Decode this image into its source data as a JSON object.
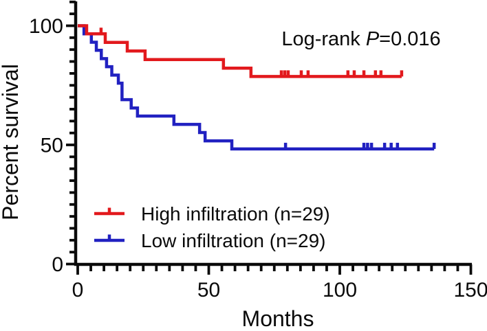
{
  "figure": {
    "background": "#ffffff",
    "axis_color": "#0a0a0a",
    "annotation_parts": {
      "prefix": "Log-rank ",
      "stat": "P",
      "value": "=0.016"
    }
  },
  "chart_data": {
    "type": "line",
    "subtype": "kaplan-meier-step",
    "title": "",
    "xlabel": "Months",
    "ylabel": "Percent survival",
    "xlim": [
      0,
      150
    ],
    "ylim": [
      0,
      110
    ],
    "x_major_ticks": [
      0,
      50,
      100,
      150
    ],
    "x_minor_tick_step": 5,
    "y_major_ticks": [
      0,
      50,
      100
    ],
    "y_minor_tick_step": 5,
    "grid": false,
    "annotation": "Log-rank P=0.016",
    "legend_position": "inside-bottom-left",
    "series": [
      {
        "name": "High infiltration (n=29)",
        "color": "#e2191d",
        "n": 29,
        "steps": [
          [
            0,
            100
          ],
          [
            3.4,
            96.6
          ],
          [
            10.5,
            93.0
          ],
          [
            18.9,
            89.4
          ],
          [
            25.7,
            85.8
          ],
          [
            55.6,
            82.2
          ],
          [
            66.1,
            78.7
          ]
        ],
        "curve_end": 123.6,
        "censor_marks": [
          [
            8.9,
            96.6
          ],
          [
            77.7,
            78.7
          ],
          [
            79.0,
            78.7
          ],
          [
            80.3,
            78.7
          ],
          [
            85.3,
            78.7
          ],
          [
            87.9,
            78.7
          ],
          [
            103.1,
            78.7
          ],
          [
            105.5,
            78.7
          ],
          [
            109.2,
            78.7
          ],
          [
            113.6,
            78.7
          ],
          [
            115.7,
            78.7
          ],
          [
            123.6,
            78.7
          ]
        ]
      },
      {
        "name": "Low infiltration (n=29)",
        "color": "#2121c1",
        "n": 29,
        "steps": [
          [
            0,
            100
          ],
          [
            2.4,
            96.6
          ],
          [
            5.2,
            93.1
          ],
          [
            7.1,
            89.7
          ],
          [
            9.0,
            86.2
          ],
          [
            11.0,
            82.8
          ],
          [
            13.0,
            79.3
          ],
          [
            15.5,
            75.9
          ],
          [
            16.9,
            69.0
          ],
          [
            20.4,
            65.5
          ],
          [
            22.8,
            62.1
          ],
          [
            36.7,
            58.6
          ],
          [
            46.5,
            55.2
          ],
          [
            48.6,
            51.7
          ],
          [
            58.8,
            48.3
          ]
        ],
        "curve_end": 136.0,
        "censor_marks": [
          [
            79.3,
            48.3
          ],
          [
            109.2,
            48.3
          ],
          [
            110.6,
            48.3
          ],
          [
            112.1,
            48.3
          ],
          [
            117.1,
            48.3
          ],
          [
            119.6,
            48.3
          ],
          [
            122.0,
            48.3
          ],
          [
            136.0,
            48.3
          ]
        ]
      }
    ]
  }
}
